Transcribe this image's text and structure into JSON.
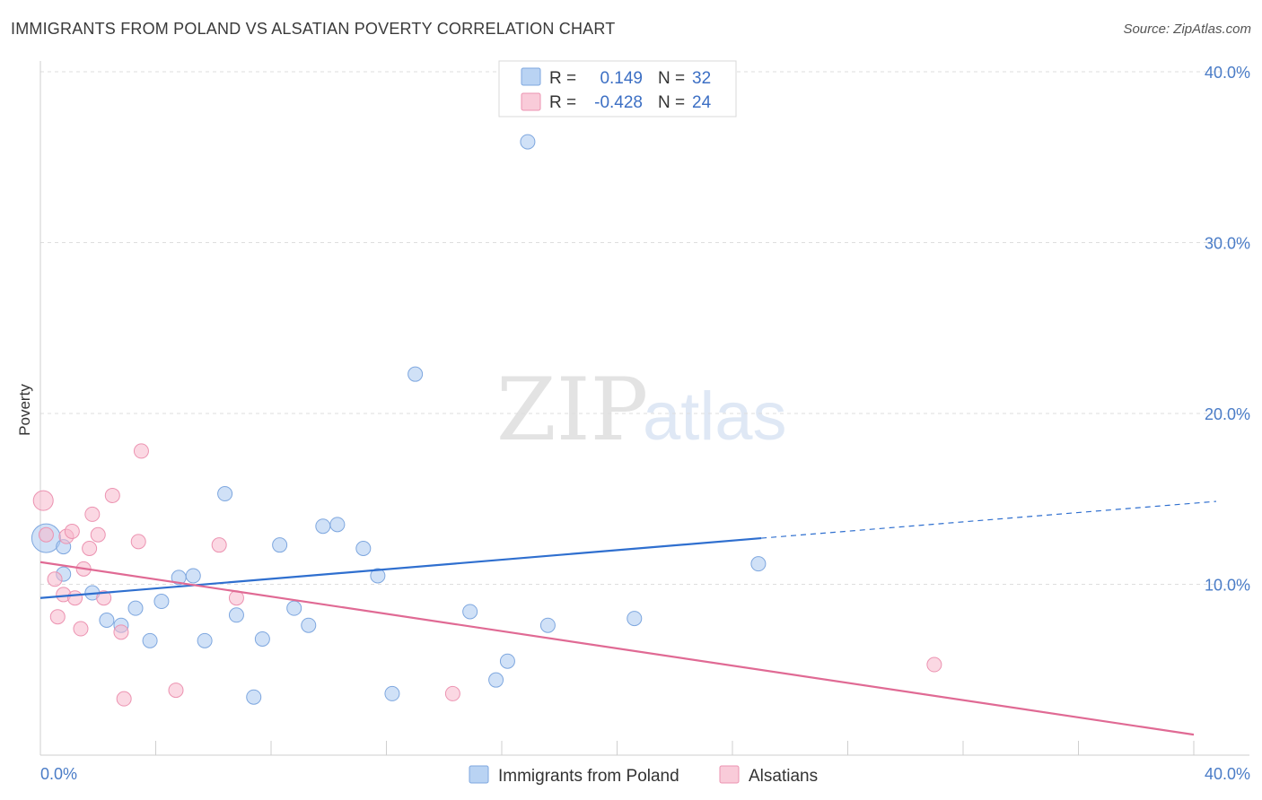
{
  "header": {
    "title": "IMMIGRANTS FROM POLAND VS ALSATIAN POVERTY CORRELATION CHART",
    "source": "Source: ZipAtlas.com"
  },
  "watermark": {
    "zip": "ZIP",
    "atlas": "atlas"
  },
  "stats": {
    "r_label": "R =",
    "n_label": "N =",
    "rows": [
      {
        "series": "Immigrants from Poland",
        "r": "0.149",
        "n": "32",
        "color": "#a9c8f0"
      },
      {
        "series": "Alsatians",
        "r": "-0.428",
        "n": "24",
        "color": "#f7b8cc"
      }
    ]
  },
  "chart_data": {
    "type": "scatter",
    "title": "IMMIGRANTS FROM POLAND VS ALSATIAN POVERTY CORRELATION CHART",
    "xlabel": "",
    "ylabel": "Poverty",
    "xlim": [
      0,
      40
    ],
    "ylim": [
      0,
      40
    ],
    "x_tick_labels": [
      "0.0%",
      "40.0%"
    ],
    "y_ticks": [
      10,
      20,
      30,
      40
    ],
    "y_tick_labels": [
      "10.0%",
      "20.0%",
      "30.0%",
      "40.0%"
    ],
    "grid": true,
    "legend_position": "bottom-center",
    "series": [
      {
        "name": "Immigrants from Poland",
        "color": "#a9c8f0",
        "line_color": "#2f6fcf",
        "trend": {
          "x": [
            0,
            25
          ],
          "y": [
            9.2,
            12.7
          ],
          "dashed_to": [
            40,
            14.8
          ]
        },
        "points": [
          [
            0.2,
            12.7,
            3
          ],
          [
            0.8,
            12.2,
            1
          ],
          [
            0.8,
            10.6,
            1
          ],
          [
            1.8,
            9.5,
            1
          ],
          [
            2.3,
            7.9,
            1
          ],
          [
            2.8,
            7.6,
            1
          ],
          [
            3.3,
            8.6,
            1
          ],
          [
            3.8,
            6.7,
            1
          ],
          [
            4.2,
            9.0,
            1
          ],
          [
            4.8,
            10.4,
            1
          ],
          [
            5.3,
            10.5,
            1
          ],
          [
            5.7,
            6.7,
            1
          ],
          [
            6.4,
            15.3,
            1
          ],
          [
            6.8,
            8.2,
            1
          ],
          [
            7.4,
            3.4,
            1
          ],
          [
            7.7,
            6.8,
            1
          ],
          [
            8.3,
            12.3,
            1
          ],
          [
            8.8,
            8.6,
            1
          ],
          [
            9.3,
            7.6,
            1
          ],
          [
            9.8,
            13.4,
            1
          ],
          [
            10.3,
            13.5,
            1
          ],
          [
            11.2,
            12.1,
            1
          ],
          [
            11.7,
            10.5,
            1
          ],
          [
            12.2,
            3.6,
            1
          ],
          [
            13.0,
            22.3,
            1
          ],
          [
            14.9,
            8.4,
            1
          ],
          [
            15.8,
            4.4,
            1
          ],
          [
            16.2,
            5.5,
            1
          ],
          [
            16.9,
            35.9,
            1
          ],
          [
            17.6,
            7.6,
            1
          ],
          [
            20.6,
            8.0,
            1
          ],
          [
            24.9,
            11.2,
            1
          ]
        ]
      },
      {
        "name": "Alsatians",
        "color": "#f7b8cc",
        "line_color": "#e06a94",
        "trend": {
          "x": [
            0,
            40
          ],
          "y": [
            11.3,
            1.2
          ]
        },
        "points": [
          [
            0.1,
            14.9,
            2
          ],
          [
            0.2,
            12.9,
            1
          ],
          [
            0.5,
            10.3,
            1
          ],
          [
            0.6,
            8.1,
            1
          ],
          [
            0.8,
            9.4,
            1
          ],
          [
            0.9,
            12.8,
            1
          ],
          [
            1.1,
            13.1,
            1
          ],
          [
            1.2,
            9.2,
            1
          ],
          [
            1.4,
            7.4,
            1
          ],
          [
            1.5,
            10.9,
            1
          ],
          [
            1.7,
            12.1,
            1
          ],
          [
            1.8,
            14.1,
            1
          ],
          [
            2.0,
            12.9,
            1
          ],
          [
            2.2,
            9.2,
            1
          ],
          [
            2.5,
            15.2,
            1
          ],
          [
            2.8,
            7.2,
            1
          ],
          [
            2.9,
            3.3,
            1
          ],
          [
            3.4,
            12.5,
            1
          ],
          [
            3.5,
            17.8,
            1
          ],
          [
            4.7,
            3.8,
            1
          ],
          [
            6.2,
            12.3,
            1
          ],
          [
            6.8,
            9.2,
            1
          ],
          [
            14.3,
            3.6,
            1
          ],
          [
            31.0,
            5.3,
            1
          ]
        ]
      }
    ]
  }
}
